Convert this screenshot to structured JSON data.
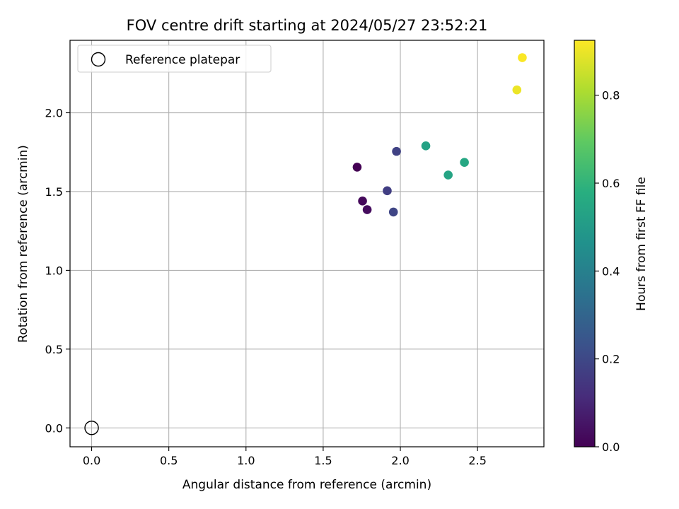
{
  "chart_data": {
    "type": "scatter",
    "title": "FOV centre drift starting at 2024/05/27 23:52:21",
    "xlabel": "Angular distance from reference (arcmin)",
    "ylabel": "Rotation from reference (arcmin)",
    "xlim": [
      -0.14,
      2.93
    ],
    "ylim": [
      -0.12,
      2.46
    ],
    "xticks": [
      0.0,
      0.5,
      1.0,
      1.5,
      2.0,
      2.5
    ],
    "xtick_labels": [
      "0.0",
      "0.5",
      "1.0",
      "1.5",
      "2.0",
      "2.5"
    ],
    "yticks": [
      0.0,
      0.5,
      1.0,
      1.5,
      2.0
    ],
    "ytick_labels": [
      "0.0",
      "0.5",
      "1.0",
      "1.5",
      "2.0"
    ],
    "grid": true,
    "legend": {
      "placement": "top-left",
      "entries": [
        "Reference platepar"
      ]
    },
    "reference_point": {
      "x": 0.0,
      "y": 0.0,
      "label": "Reference platepar"
    },
    "points": [
      {
        "x": 1.72,
        "y": 1.655,
        "c": 0.0
      },
      {
        "x": 1.755,
        "y": 1.44,
        "c": 0.02
      },
      {
        "x": 1.785,
        "y": 1.385,
        "c": 0.03
      },
      {
        "x": 1.915,
        "y": 1.505,
        "c": 0.17
      },
      {
        "x": 1.975,
        "y": 1.755,
        "c": 0.18
      },
      {
        "x": 1.955,
        "y": 1.37,
        "c": 0.19
      },
      {
        "x": 2.165,
        "y": 1.79,
        "c": 0.53
      },
      {
        "x": 2.31,
        "y": 1.605,
        "c": 0.54
      },
      {
        "x": 2.415,
        "y": 1.685,
        "c": 0.55
      },
      {
        "x": 2.755,
        "y": 2.145,
        "c": 0.9
      },
      {
        "x": 2.79,
        "y": 2.35,
        "c": 0.92
      }
    ],
    "colorbar": {
      "label": "Hours from first FF file",
      "colormap": "viridis",
      "range": [
        0.0,
        0.925
      ],
      "ticks": [
        0.0,
        0.2,
        0.4,
        0.6,
        0.8
      ],
      "tick_labels": [
        "0.0",
        "0.2",
        "0.4",
        "0.6",
        "0.8"
      ]
    }
  },
  "colors": {
    "grid": "#b0b0b0",
    "axis": "#000000",
    "reference_marker": "#000000"
  }
}
